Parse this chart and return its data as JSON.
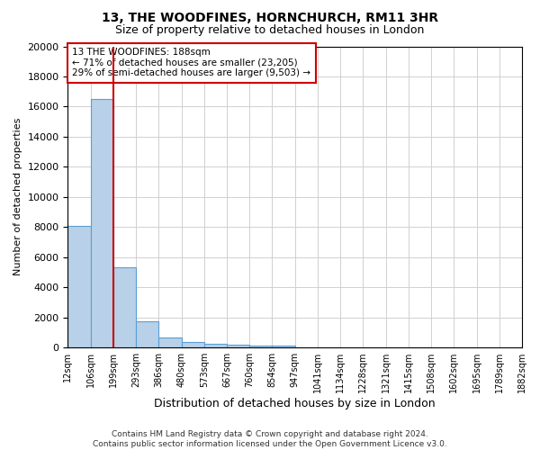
{
  "title1": "13, THE WOODFINES, HORNCHURCH, RM11 3HR",
  "title2": "Size of property relative to detached houses in London",
  "xlabel": "Distribution of detached houses by size in London",
  "ylabel": "Number of detached properties",
  "bar_values": [
    8100,
    16500,
    5300,
    1750,
    650,
    350,
    270,
    180,
    130,
    100,
    0,
    0,
    0,
    0,
    0,
    0,
    0,
    0,
    0,
    0
  ],
  "xtick_labels": [
    "12sqm",
    "106sqm",
    "199sqm",
    "293sqm",
    "386sqm",
    "480sqm",
    "573sqm",
    "667sqm",
    "760sqm",
    "854sqm",
    "947sqm",
    "1041sqm",
    "1134sqm",
    "1228sqm",
    "1321sqm",
    "1415sqm",
    "1508sqm",
    "1602sqm",
    "1695sqm",
    "1789sqm",
    "1882sqm"
  ],
  "ylim": [
    0,
    20000
  ],
  "yticks": [
    0,
    2000,
    4000,
    6000,
    8000,
    10000,
    12000,
    14000,
    16000,
    18000,
    20000
  ],
  "bar_facecolor": "#b8d0e8",
  "bar_edgecolor": "#5a9fd4",
  "vline_bar_index": 1,
  "vline_color": "#cc0000",
  "annotation_text": "13 THE WOODFINES: 188sqm\n← 71% of detached houses are smaller (23,205)\n29% of semi-detached houses are larger (9,503) →",
  "annotation_box_color": "#cc0000",
  "annotation_facecolor": "white",
  "footer_text": "Contains HM Land Registry data © Crown copyright and database right 2024.\nContains public sector information licensed under the Open Government Licence v3.0.",
  "background_color": "#ffffff",
  "grid_color": "#d0d0d0"
}
